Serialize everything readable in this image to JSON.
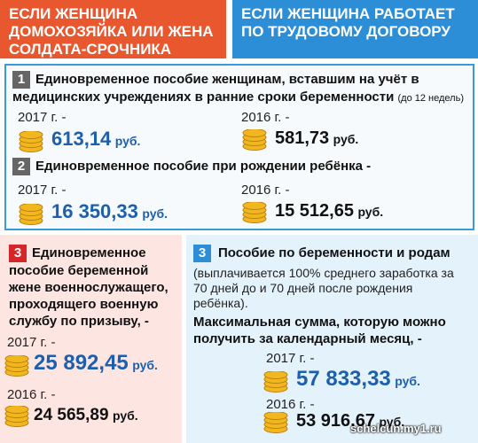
{
  "header": {
    "left": "ЕСЛИ ЖЕНЩИНА ДОМОХОЗЯЙКА ИЛИ ЖЕНА СОЛДАТА-СРОЧНИКА",
    "right": "ЕСЛИ ЖЕНЩИНА РАБОТАЕТ ПО ТРУДОВОМУ ДОГОВОРУ"
  },
  "shared": {
    "item1": {
      "number": "1",
      "title": "Единовременное пособие женщинам, вставшим на учёт в медицинских учреждениях в ранние сроки беременности",
      "note": "(до 12 недель)",
      "year_a": "2017 г. -",
      "amount_a": "613,14",
      "unit_a": "руб.",
      "year_b": "2016 г. -",
      "amount_b": "581,73",
      "unit_b": "руб."
    },
    "item2": {
      "number": "2",
      "title": "Единовременное пособие при рождении ребёнка -",
      "year_a": "2017 г. -",
      "amount_a": "16 350,33",
      "unit_a": "руб.",
      "year_b": "2016 г. -",
      "amount_b": "15 512,65",
      "unit_b": "руб."
    }
  },
  "left": {
    "number": "3",
    "title": "Единовременное пособие беременной жене военнослужащего, проходящего военную службу по призыву, -",
    "year_a": "2017 г. -",
    "amount_a": "25 892,45",
    "unit_a": "руб.",
    "year_b": "2016 г. -",
    "amount_b": "24 565,89",
    "unit_b": "руб."
  },
  "right": {
    "number": "3",
    "title": "Пособие по беременности и родам",
    "note": "(выплачивается 100% среднего заработка за 70 дней до и 70 дней после рождения ребёнка).",
    "subtitle": "Максимальная сумма, которую можно получить за календарный месяц, -",
    "year_a": "2017 г. -",
    "amount_a": "57 833,33",
    "unit_a": "руб.",
    "year_b": "2016 г. -",
    "amount_b": "53 916,67",
    "unit_b": "руб."
  },
  "watermark": "schelcun.my1.ru"
}
